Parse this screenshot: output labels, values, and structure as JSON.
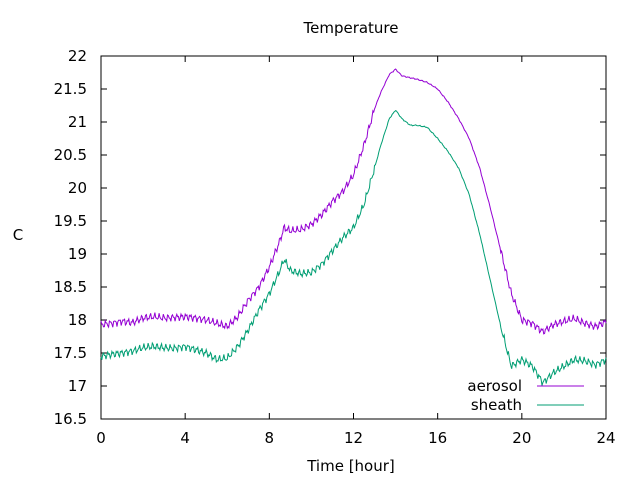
{
  "chart_data": {
    "type": "line",
    "title": "Temperature",
    "xlabel": "Time [hour]",
    "ylabel": "C",
    "xlim": [
      0,
      24
    ],
    "ylim": [
      16.5,
      22
    ],
    "xticks": [
      0,
      4,
      8,
      12,
      16,
      20,
      24
    ],
    "yticks": [
      16.5,
      17,
      17.5,
      18,
      18.5,
      19,
      19.5,
      20,
      20.5,
      21,
      21.5,
      22
    ],
    "grid": false,
    "legend_position": "bottom-right",
    "series": [
      {
        "name": "aerosol",
        "color": "#9400d3",
        "x": [
          0,
          0.5,
          1,
          1.5,
          2,
          2.5,
          3,
          3.5,
          4,
          4.5,
          5,
          5.5,
          6,
          6.5,
          7,
          7.5,
          8,
          8.5,
          8.7,
          9,
          9.5,
          10,
          10.5,
          11,
          11.5,
          12,
          12.5,
          13,
          13.3,
          13.7,
          14,
          14.3,
          14.7,
          15,
          15.5,
          16,
          16.5,
          17,
          17.5,
          18,
          18.5,
          19,
          19.5,
          20,
          20.5,
          21,
          21.5,
          22,
          22.5,
          23,
          23.5,
          24
        ],
        "y": [
          17.93,
          17.95,
          17.98,
          17.96,
          18.03,
          18.05,
          18.03,
          18.04,
          18.05,
          18.03,
          18.0,
          17.95,
          17.9,
          18.05,
          18.3,
          18.5,
          18.8,
          19.2,
          19.4,
          19.35,
          19.37,
          19.45,
          19.6,
          19.8,
          19.95,
          20.2,
          20.65,
          21.2,
          21.45,
          21.72,
          21.8,
          21.7,
          21.67,
          21.65,
          21.6,
          21.5,
          21.3,
          21.05,
          20.75,
          20.3,
          19.7,
          19.05,
          18.4,
          18.0,
          17.95,
          17.82,
          17.93,
          17.98,
          18.02,
          17.95,
          17.9,
          17.97
        ]
      },
      {
        "name": "sheath",
        "color": "#009e73",
        "x": [
          0,
          0.5,
          1,
          1.5,
          2,
          2.5,
          3,
          3.5,
          4,
          4.5,
          5,
          5.5,
          6,
          6.5,
          7,
          7.5,
          8,
          8.5,
          8.7,
          9,
          9.5,
          10,
          10.5,
          11,
          11.5,
          12,
          12.5,
          13,
          13.3,
          13.7,
          14,
          14.3,
          14.7,
          15,
          15.5,
          16,
          16.5,
          17,
          17.5,
          18,
          18.5,
          19,
          19.5,
          20,
          20.5,
          21,
          21.5,
          22,
          22.5,
          23,
          23.5,
          24
        ],
        "y": [
          17.45,
          17.48,
          17.5,
          17.53,
          17.58,
          17.6,
          17.58,
          17.57,
          17.6,
          17.55,
          17.5,
          17.4,
          17.42,
          17.6,
          17.85,
          18.15,
          18.4,
          18.75,
          18.92,
          18.75,
          18.7,
          18.72,
          18.85,
          19.05,
          19.25,
          19.4,
          19.75,
          20.3,
          20.65,
          21.05,
          21.18,
          21.05,
          20.95,
          20.95,
          20.92,
          20.75,
          20.55,
          20.3,
          19.9,
          19.3,
          18.6,
          17.9,
          17.3,
          17.4,
          17.3,
          17.05,
          17.2,
          17.3,
          17.4,
          17.38,
          17.32,
          17.4
        ]
      }
    ]
  }
}
